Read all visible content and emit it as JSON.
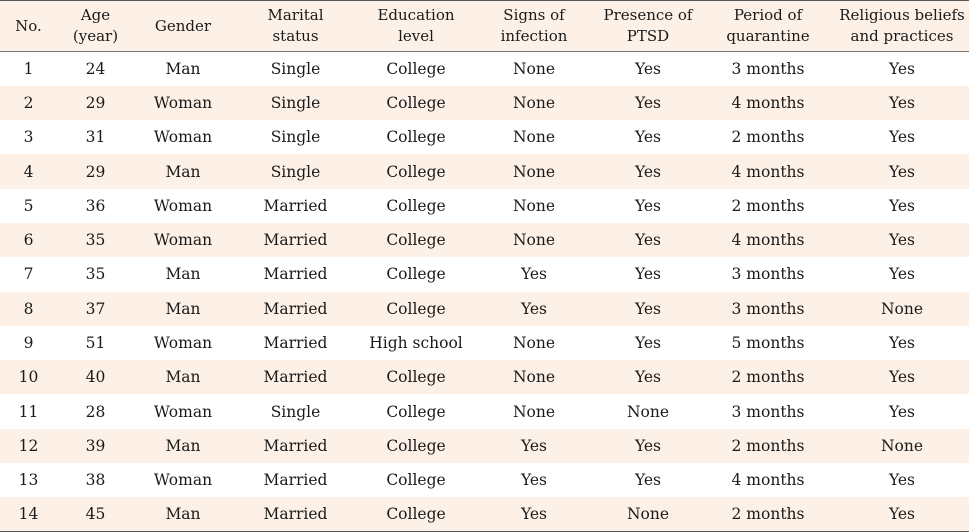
{
  "table": {
    "headers": [
      [
        "No."
      ],
      [
        "Age",
        "(year)"
      ],
      [
        "Gender"
      ],
      [
        "Marital",
        "status"
      ],
      [
        "Education",
        "level"
      ],
      [
        "Signs of",
        "infection"
      ],
      [
        "Presence of",
        "PTSD"
      ],
      [
        "Period of",
        "quarantine"
      ],
      [
        "Religious beliefs",
        "and practices"
      ]
    ],
    "rows": [
      [
        "1",
        "24",
        "Man",
        "Single",
        "College",
        "None",
        "Yes",
        "3 months",
        "Yes"
      ],
      [
        "2",
        "29",
        "Woman",
        "Single",
        "College",
        "None",
        "Yes",
        "4 months",
        "Yes"
      ],
      [
        "3",
        "31",
        "Woman",
        "Single",
        "College",
        "None",
        "Yes",
        "2 months",
        "Yes"
      ],
      [
        "4",
        "29",
        "Man",
        "Single",
        "College",
        "None",
        "Yes",
        "4 months",
        "Yes"
      ],
      [
        "5",
        "36",
        "Woman",
        "Married",
        "College",
        "None",
        "Yes",
        "2 months",
        "Yes"
      ],
      [
        "6",
        "35",
        "Woman",
        "Married",
        "College",
        "None",
        "Yes",
        "4 months",
        "Yes"
      ],
      [
        "7",
        "35",
        "Man",
        "Married",
        "College",
        "Yes",
        "Yes",
        "3 months",
        "Yes"
      ],
      [
        "8",
        "37",
        "Man",
        "Married",
        "College",
        "Yes",
        "Yes",
        "3 months",
        "None"
      ],
      [
        "9",
        "51",
        "Woman",
        "Married",
        "High school",
        "None",
        "Yes",
        "5 months",
        "Yes"
      ],
      [
        "10",
        "40",
        "Man",
        "Married",
        "College",
        "None",
        "Yes",
        "2 months",
        "Yes"
      ],
      [
        "11",
        "28",
        "Woman",
        "Single",
        "College",
        "None",
        "None",
        "3 months",
        "Yes"
      ],
      [
        "12",
        "39",
        "Man",
        "Married",
        "College",
        "Yes",
        "Yes",
        "2 months",
        "None"
      ],
      [
        "13",
        "38",
        "Woman",
        "Married",
        "College",
        "Yes",
        "Yes",
        "4 months",
        "Yes"
      ],
      [
        "14",
        "45",
        "Man",
        "Married",
        "College",
        "Yes",
        "None",
        "2 months",
        "Yes"
      ]
    ]
  }
}
